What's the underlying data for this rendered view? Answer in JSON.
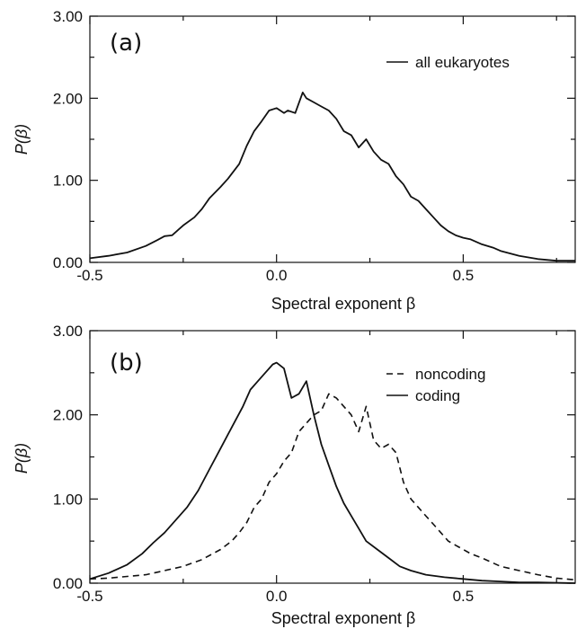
{
  "chart_data": [
    {
      "type": "line",
      "panel_tag": "(a)",
      "xlabel": "Spectral exponent β",
      "ylabel": "P(β)",
      "xlim": [
        -0.5,
        0.8
      ],
      "ylim": [
        0,
        3
      ],
      "xticks": [
        {
          "value": -0.5,
          "label": "-0.5"
        },
        {
          "value": 0.0,
          "label": "0.0"
        },
        {
          "value": 0.5,
          "label": "0.5"
        }
      ],
      "yticks": [
        {
          "value": 0,
          "label": "0.00"
        },
        {
          "value": 1,
          "label": "1.00"
        },
        {
          "value": 2,
          "label": "2.00"
        },
        {
          "value": 3,
          "label": "3.00"
        }
      ],
      "legend_position": "top-right",
      "series": [
        {
          "name": "all eukaryotes",
          "style": "solid",
          "color": "#111111",
          "x": [
            -0.5,
            -0.45,
            -0.4,
            -0.35,
            -0.32,
            -0.3,
            -0.28,
            -0.25,
            -0.22,
            -0.2,
            -0.18,
            -0.15,
            -0.13,
            -0.1,
            -0.08,
            -0.06,
            -0.04,
            -0.02,
            0.0,
            0.02,
            0.03,
            0.05,
            0.07,
            0.08,
            0.1,
            0.12,
            0.14,
            0.16,
            0.18,
            0.2,
            0.22,
            0.24,
            0.26,
            0.28,
            0.3,
            0.32,
            0.34,
            0.36,
            0.38,
            0.4,
            0.42,
            0.44,
            0.46,
            0.48,
            0.5,
            0.52,
            0.55,
            0.58,
            0.6,
            0.65,
            0.7,
            0.75,
            0.8
          ],
          "y": [
            0.05,
            0.08,
            0.12,
            0.2,
            0.27,
            0.32,
            0.33,
            0.45,
            0.55,
            0.65,
            0.78,
            0.92,
            1.02,
            1.2,
            1.42,
            1.6,
            1.72,
            1.85,
            1.88,
            1.82,
            1.85,
            1.82,
            2.07,
            2.0,
            1.95,
            1.9,
            1.85,
            1.75,
            1.6,
            1.55,
            1.4,
            1.5,
            1.35,
            1.25,
            1.2,
            1.05,
            0.95,
            0.8,
            0.75,
            0.65,
            0.55,
            0.45,
            0.38,
            0.33,
            0.3,
            0.28,
            0.22,
            0.18,
            0.14,
            0.08,
            0.04,
            0.02,
            0.02
          ]
        }
      ]
    },
    {
      "type": "line",
      "panel_tag": "(b)",
      "xlabel": "Spectral exponent β",
      "ylabel": "P(β)",
      "xlim": [
        -0.5,
        0.8
      ],
      "ylim": [
        0,
        3
      ],
      "xticks": [
        {
          "value": -0.5,
          "label": "-0.5"
        },
        {
          "value": 0.0,
          "label": "0.0"
        },
        {
          "value": 0.5,
          "label": "0.5"
        }
      ],
      "yticks": [
        {
          "value": 0,
          "label": "0.00"
        },
        {
          "value": 1,
          "label": "1.00"
        },
        {
          "value": 2,
          "label": "2.00"
        },
        {
          "value": 3,
          "label": "3.00"
        }
      ],
      "legend_position": "top-right",
      "series": [
        {
          "name": "noncoding",
          "style": "dashed",
          "color": "#111111",
          "x": [
            -0.5,
            -0.45,
            -0.4,
            -0.35,
            -0.3,
            -0.25,
            -0.2,
            -0.15,
            -0.12,
            -0.1,
            -0.08,
            -0.06,
            -0.04,
            -0.02,
            0.0,
            0.02,
            0.04,
            0.06,
            0.08,
            0.1,
            0.12,
            0.14,
            0.16,
            0.18,
            0.2,
            0.22,
            0.24,
            0.26,
            0.28,
            0.3,
            0.32,
            0.34,
            0.36,
            0.38,
            0.4,
            0.42,
            0.44,
            0.46,
            0.48,
            0.5,
            0.52,
            0.55,
            0.6,
            0.65,
            0.7,
            0.75,
            0.8
          ],
          "y": [
            0.05,
            0.06,
            0.08,
            0.1,
            0.15,
            0.2,
            0.28,
            0.4,
            0.5,
            0.6,
            0.72,
            0.9,
            1.0,
            1.2,
            1.3,
            1.45,
            1.55,
            1.8,
            1.9,
            2.0,
            2.05,
            2.25,
            2.2,
            2.1,
            2.0,
            1.8,
            2.1,
            1.7,
            1.6,
            1.65,
            1.55,
            1.2,
            1.0,
            0.9,
            0.8,
            0.7,
            0.6,
            0.5,
            0.45,
            0.4,
            0.35,
            0.3,
            0.2,
            0.15,
            0.1,
            0.06,
            0.04
          ]
        },
        {
          "name": "coding",
          "style": "solid",
          "color": "#111111",
          "x": [
            -0.5,
            -0.45,
            -0.4,
            -0.36,
            -0.33,
            -0.3,
            -0.27,
            -0.24,
            -0.21,
            -0.18,
            -0.15,
            -0.12,
            -0.09,
            -0.07,
            -0.05,
            -0.03,
            -0.01,
            0.0,
            0.02,
            0.04,
            0.06,
            0.08,
            0.1,
            0.12,
            0.14,
            0.16,
            0.18,
            0.2,
            0.22,
            0.24,
            0.27,
            0.3,
            0.33,
            0.36,
            0.4,
            0.45,
            0.5,
            0.55,
            0.6,
            0.65,
            0.7,
            0.8
          ],
          "y": [
            0.05,
            0.12,
            0.22,
            0.35,
            0.48,
            0.6,
            0.75,
            0.9,
            1.1,
            1.35,
            1.6,
            1.85,
            2.1,
            2.3,
            2.4,
            2.5,
            2.6,
            2.62,
            2.55,
            2.2,
            2.25,
            2.4,
            2.0,
            1.65,
            1.4,
            1.15,
            0.95,
            0.8,
            0.65,
            0.5,
            0.4,
            0.3,
            0.2,
            0.15,
            0.1,
            0.07,
            0.05,
            0.03,
            0.02,
            0.01,
            0.01,
            0.0
          ]
        }
      ]
    }
  ]
}
